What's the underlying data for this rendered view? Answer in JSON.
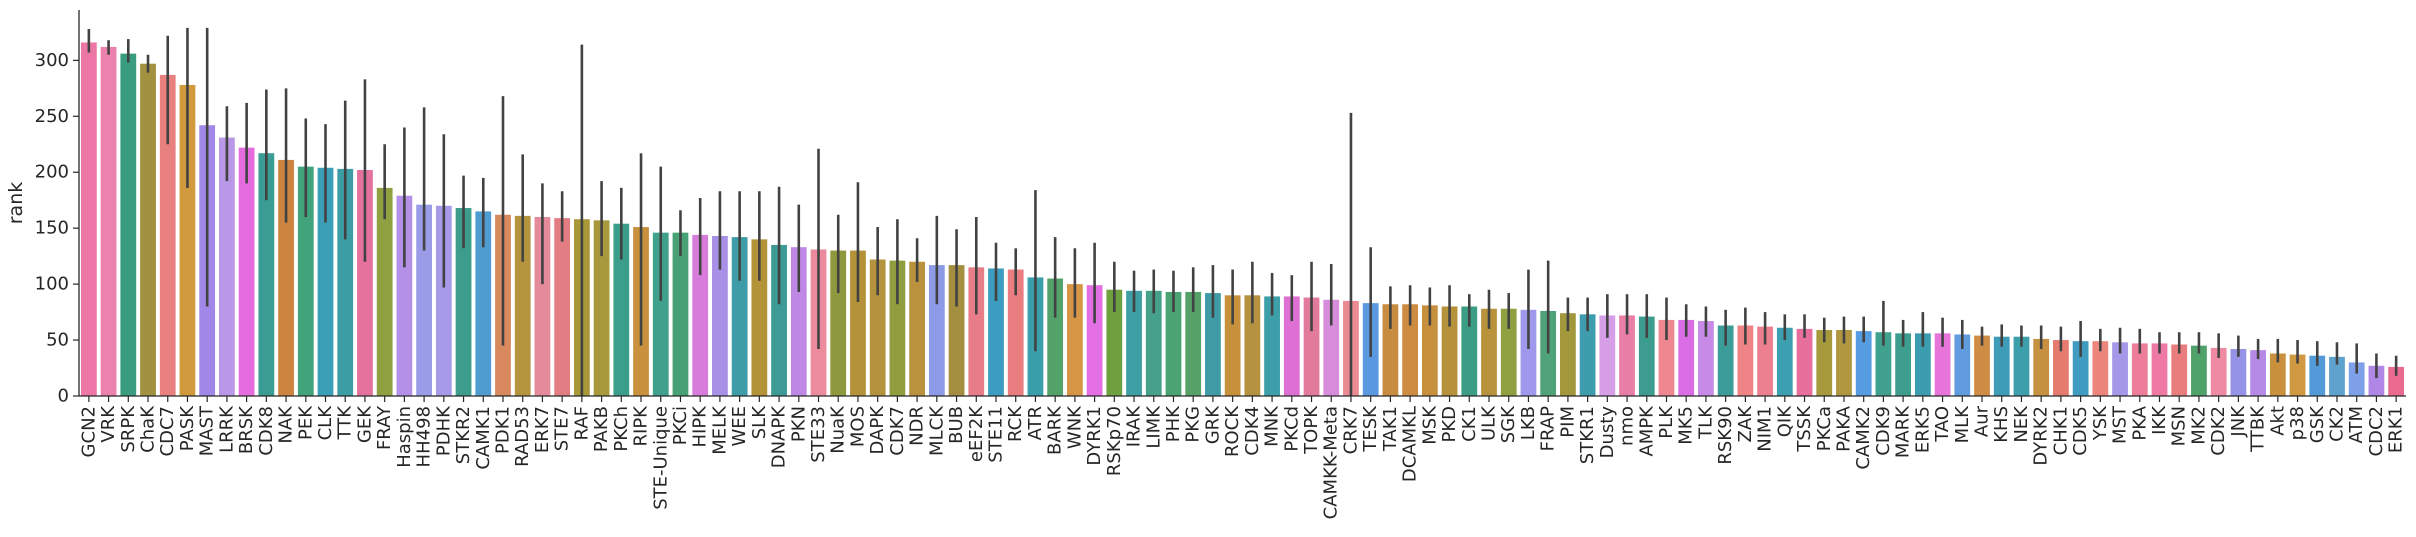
{
  "chart_data": {
    "type": "bar",
    "xlabel": "",
    "ylabel": "rank",
    "ylim": [
      0,
      345
    ],
    "yticks": [
      0,
      50,
      100,
      150,
      200,
      250,
      300
    ],
    "grid": false,
    "error_bars": true,
    "categories": [
      "GCN2",
      "VRK",
      "SRPK",
      "ChaK",
      "CDC7",
      "PASK",
      "MAST",
      "LRRK",
      "BRSK",
      "CDK8",
      "NAK",
      "PEK",
      "CLK",
      "TTK",
      "GEK",
      "FRAY",
      "Haspin",
      "HH498",
      "PDHK",
      "STKR2",
      "CAMK1",
      "PDK1",
      "RAD53",
      "ERK7",
      "STE7",
      "RAF",
      "PAKB",
      "PKCh",
      "RIPK",
      "STE-Unique",
      "PKCi",
      "HIPK",
      "MELK",
      "WEE",
      "SLK",
      "DNAPK",
      "PKN",
      "STE33",
      "NuaK",
      "MOS",
      "DAPK",
      "CDK7",
      "NDR",
      "MLCK",
      "BUB",
      "eEF2K",
      "STE11",
      "RCK",
      "ATR",
      "BARK",
      "WNK",
      "DYRK1",
      "RSKp70",
      "IRAK",
      "LIMK",
      "PHK",
      "PKG",
      "GRK",
      "ROCK",
      "CDK4",
      "MNK",
      "PKCd",
      "TOPK",
      "CAMKK-Meta",
      "CRK7",
      "TESK",
      "TAK1",
      "DCAMKL",
      "MSK",
      "PKD",
      "CK1",
      "ULK",
      "SGK",
      "LKB",
      "FRAP",
      "PIM",
      "STKR1",
      "Dusty",
      "nmo",
      "AMPK",
      "PLK",
      "MK5",
      "TLK",
      "RSK90",
      "ZAK",
      "NIM1",
      "QIK",
      "TSSK",
      "PKCa",
      "PAKA",
      "CAMK2",
      "CDK9",
      "MARK",
      "ERK5",
      "TAO",
      "MLK",
      "Aur",
      "KHS",
      "NEK",
      "DYRK2",
      "CHK1",
      "CDK5",
      "YSK",
      "MST",
      "PKA",
      "IKK",
      "MSN",
      "MK2",
      "CDK2",
      "JNK",
      "TTBK",
      "Akt",
      "p38",
      "GSK",
      "CK2",
      "ATM",
      "CDC2",
      "ERK1"
    ],
    "values": [
      316,
      312,
      306,
      297,
      287,
      278,
      242,
      231,
      222,
      217,
      211,
      205,
      204,
      203,
      202,
      186,
      179,
      171,
      170,
      168,
      165,
      162,
      161,
      160,
      159,
      158,
      157,
      154,
      151,
      146,
      146,
      144,
      143,
      142,
      140,
      135,
      133,
      131,
      130,
      130,
      122,
      121,
      120,
      117,
      117,
      115,
      114,
      113,
      106,
      105,
      100,
      99,
      95,
      94,
      94,
      93,
      93,
      92,
      90,
      90,
      89,
      89,
      88,
      86,
      85,
      83,
      82,
      82,
      81,
      80,
      80,
      78,
      78,
      77,
      76,
      74,
      73,
      72,
      72,
      71,
      68,
      68,
      67,
      63,
      63,
      62,
      61,
      60,
      59,
      59,
      58,
      57,
      56,
      56,
      56,
      55,
      54,
      53,
      53,
      51,
      50,
      49,
      49,
      48,
      47,
      47,
      46,
      45,
      43,
      42,
      41,
      38,
      37,
      36,
      35,
      30,
      27,
      26
    ],
    "error_low": [
      307,
      305,
      298,
      289,
      225,
      186,
      80,
      192,
      190,
      175,
      155,
      160,
      155,
      140,
      120,
      158,
      115,
      130,
      97,
      132,
      133,
      45,
      120,
      100,
      138,
      0,
      125,
      122,
      45,
      85,
      125,
      108,
      113,
      103,
      103,
      82,
      93,
      42,
      92,
      84,
      90,
      82,
      102,
      82,
      80,
      73,
      85,
      90,
      40,
      70,
      70,
      65,
      75,
      75,
      74,
      75,
      75,
      70,
      64,
      65,
      72,
      67,
      58,
      63,
      0,
      35,
      60,
      63,
      63,
      62,
      62,
      60,
      60,
      42,
      38,
      58,
      58,
      52,
      55,
      52,
      50,
      53,
      53,
      45,
      46,
      46,
      50,
      52,
      48,
      47,
      48,
      45,
      44,
      44,
      44,
      42,
      45,
      44,
      44,
      42,
      40,
      35,
      40,
      38,
      38,
      38,
      38,
      38,
      34,
      35,
      33,
      30,
      29,
      27,
      28,
      20,
      16,
      18
    ],
    "error_high": [
      328,
      318,
      319,
      305,
      322,
      329,
      329,
      259,
      262,
      274,
      275,
      248,
      243,
      264,
      283,
      225,
      240,
      258,
      234,
      197,
      195,
      268,
      216,
      190,
      183,
      314,
      192,
      186,
      217,
      205,
      166,
      177,
      183,
      183,
      183,
      187,
      171,
      221,
      162,
      191,
      151,
      158,
      141,
      161,
      149,
      160,
      137,
      132,
      184,
      142,
      132,
      137,
      120,
      112,
      113,
      112,
      115,
      117,
      113,
      120,
      110,
      108,
      120,
      118,
      253,
      133,
      98,
      99,
      97,
      99,
      91,
      95,
      92,
      113,
      121,
      88,
      88,
      91,
      91,
      91,
      88,
      82,
      80,
      77,
      79,
      75,
      73,
      73,
      70,
      71,
      71,
      85,
      68,
      75,
      70,
      68,
      62,
      64,
      63,
      63,
      62,
      67,
      60,
      61,
      60,
      57,
      57,
      57,
      56,
      54,
      51,
      51,
      50,
      49,
      48,
      47,
      38,
      36
    ],
    "colors": [
      "#ec77a6",
      "#ea82ad",
      "#3a9c7e",
      "#a2913e",
      "#e88080",
      "#d09a3d",
      "#a188e8",
      "#b998e8",
      "#e46cde",
      "#3a9c92",
      "#cd8440",
      "#41a37c",
      "#3b9fb8",
      "#3c9da4",
      "#e4729c",
      "#8ea040",
      "#b490e8",
      "#9b9ce8",
      "#a79ae8",
      "#3c9d8c",
      "#4f9cd0",
      "#d9895e",
      "#b4953e",
      "#e48a9b",
      "#e27d84",
      "#a99838",
      "#a8993c",
      "#3b9e8a",
      "#c9903e",
      "#3fa18b",
      "#48a174",
      "#d87cdc",
      "#a890e6",
      "#3d9ca5",
      "#b29338",
      "#3c9c95",
      "#bf87e6",
      "#ec8b9e",
      "#8e983c",
      "#b39239",
      "#b5923d",
      "#919e40",
      "#ba913d",
      "#8c9ae7",
      "#a38f3f",
      "#e77d88",
      "#3d9dc0",
      "#ea7d80",
      "#3a9fab",
      "#52a26a",
      "#d79546",
      "#e46ee3",
      "#6fa040",
      "#3e9fa4",
      "#45a189",
      "#4ba374",
      "#56a167",
      "#3f9ba6",
      "#c7913c",
      "#b59240",
      "#3d9fa9",
      "#de70d4",
      "#e27a9b",
      "#d88ddc",
      "#ea8a92",
      "#5a98e0",
      "#c88c40",
      "#cd8c42",
      "#c7903d",
      "#b6933b",
      "#3c9d85",
      "#b8933b",
      "#8fa040",
      "#a098ec",
      "#50a27a",
      "#a3973c",
      "#3e9dac",
      "#d79ee8",
      "#e97ea6",
      "#3c9c8f",
      "#ee8790",
      "#da6ce6",
      "#c78be7",
      "#3b9c9a",
      "#ef8385",
      "#ec8091",
      "#3da0b0",
      "#e86e9c",
      "#a69a3d",
      "#b0963f",
      "#569ce0",
      "#40a18e",
      "#3d9e90",
      "#3c9db1",
      "#e774d8",
      "#619cdf",
      "#cf8c44",
      "#3e9cb8",
      "#3e9fac",
      "#c69241",
      "#e57a6f",
      "#3f9bc0",
      "#ec867d",
      "#a598e8",
      "#ed7d98",
      "#ee7aa4",
      "#e97c7c",
      "#4fa26a",
      "#ee8aa2",
      "#9493e7",
      "#b58ae7",
      "#c9913e",
      "#d09840",
      "#529bd8",
      "#5fa2ce",
      "#7da0e8",
      "#b087e6",
      "#e96a8e"
    ]
  }
}
